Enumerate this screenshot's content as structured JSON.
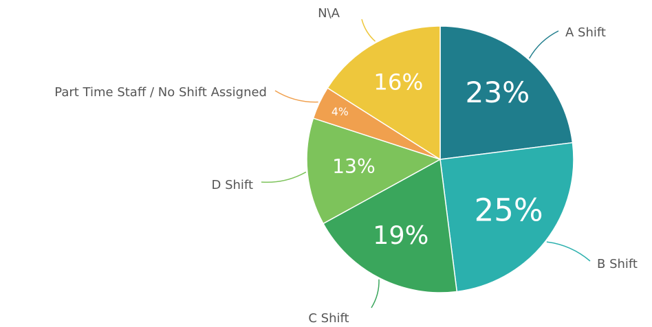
{
  "chart_data": {
    "type": "pie",
    "categories": [
      "A Shift",
      "B Shift",
      "C Shift",
      "D Shift",
      "Part Time Staff / No Shift Assigned",
      "N\\A"
    ],
    "values": [
      23,
      25,
      19,
      13,
      4,
      16
    ],
    "value_labels": [
      "23%",
      "25%",
      "19%",
      "13%",
      "4%",
      "16%"
    ],
    "colors": [
      "#1f7d8c",
      "#2bb0ad",
      "#3aa65c",
      "#7dc35b",
      "#f0a04e",
      "#eec73c"
    ]
  }
}
